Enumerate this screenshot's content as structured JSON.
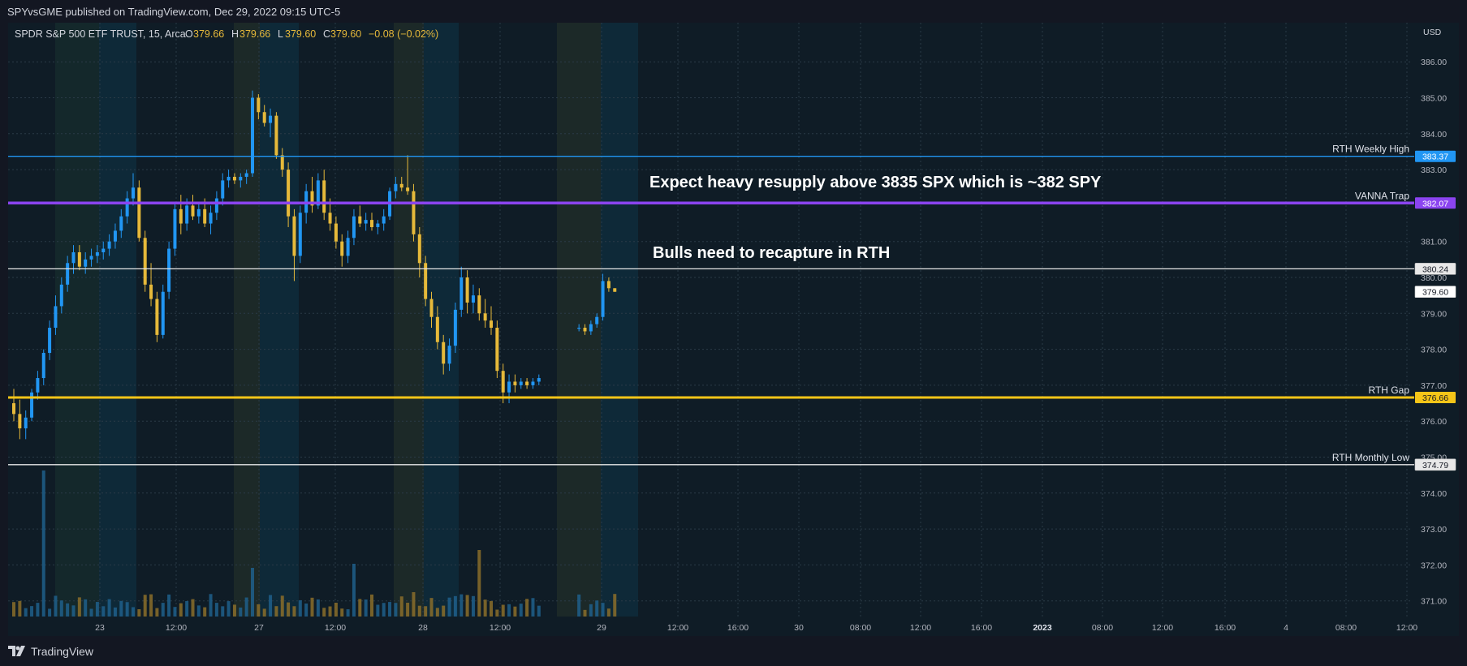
{
  "header": {
    "published_text": "SPYvsGME published on TradingView.com, Dec 29, 2022 09:15 UTC-5"
  },
  "symbol": {
    "title": "SPDR S&P 500 ETF TRUST, 15, Arca",
    "o_label": "O",
    "o_value": "379.66",
    "h_label": "H",
    "h_value": "379.66",
    "l_label": "L",
    "l_value": "379.60",
    "c_label": "C",
    "c_value": "379.60",
    "change": "−0.08 (−0.02%)"
  },
  "currency": "USD",
  "footer": {
    "brand": "TradingView"
  },
  "colors": {
    "up": "#2196f3",
    "down": "#e6b93a",
    "blue_line": "#2196f3",
    "purple_line": "#8b44f0",
    "yellow_line": "#f5c518",
    "white_line": "#e8e8e8"
  },
  "chart_data": {
    "type": "candlestick",
    "ylim": [
      370.5,
      386.6
    ],
    "y_ticks": [
      "386.00",
      "385.00",
      "384.00",
      "383.00",
      "381.00",
      "380.00",
      "379.00",
      "378.00",
      "377.00",
      "376.00",
      "375.00",
      "374.00",
      "373.00",
      "372.00",
      "371.00"
    ],
    "x_ticks": [
      "23",
      "12:00",
      "27",
      "12:00",
      "28",
      "12:00",
      "29",
      "12:00",
      "16:00",
      "30",
      "08:00",
      "12:00",
      "16:00",
      "2023",
      "08:00",
      "12:00",
      "16:00",
      "4",
      "08:00",
      "12:00"
    ],
    "levels": [
      {
        "name": "RTH Weekly High",
        "value": 383.37,
        "label": "383.37",
        "color": "#2196f3"
      },
      {
        "name": "VANNA Trap",
        "value": 382.07,
        "label": "382.07",
        "color": "#8b44f0"
      },
      {
        "name": "",
        "value": 380.24,
        "label": "380.24",
        "color": "#e8e8e8"
      },
      {
        "name": "RTH Gap",
        "value": 376.66,
        "label": "376.66",
        "color": "#f5c518"
      },
      {
        "name": "RTH Monthly Low",
        "value": 374.79,
        "label": "374.79",
        "color": "#e8e8e8"
      }
    ],
    "last_price": {
      "value": 379.6,
      "label": "379.60"
    },
    "annotations": [
      "Expect heavy resupply above 3835 SPX which is ~382 SPY",
      "Bulls need to recapture in RTH"
    ],
    "candles": [
      [
        376.5,
        376.9,
        376.0,
        376.2
      ],
      [
        376.2,
        376.6,
        375.5,
        375.8
      ],
      [
        375.8,
        376.3,
        375.5,
        376.1
      ],
      [
        376.1,
        376.9,
        376.0,
        376.8
      ],
      [
        376.8,
        377.4,
        376.6,
        377.2
      ],
      [
        377.2,
        378.0,
        377.0,
        377.9
      ],
      [
        377.9,
        378.8,
        377.7,
        378.6
      ],
      [
        378.6,
        379.5,
        378.4,
        379.2
      ],
      [
        379.2,
        380.0,
        379.0,
        379.8
      ],
      [
        379.8,
        380.6,
        379.6,
        380.4
      ],
      [
        380.4,
        380.9,
        380.1,
        380.7
      ],
      [
        380.7,
        380.9,
        380.2,
        380.3
      ],
      [
        380.3,
        380.7,
        380.1,
        380.5
      ],
      [
        380.5,
        380.8,
        380.3,
        380.6
      ],
      [
        380.6,
        380.9,
        380.4,
        380.7
      ],
      [
        380.7,
        381.0,
        380.5,
        380.8
      ],
      [
        380.8,
        381.2,
        380.6,
        381.0
      ],
      [
        381.0,
        381.5,
        380.8,
        381.3
      ],
      [
        381.3,
        381.9,
        381.1,
        381.7
      ],
      [
        381.7,
        382.4,
        381.5,
        382.2
      ],
      [
        382.2,
        382.9,
        382.0,
        382.5
      ],
      [
        382.5,
        382.7,
        381.0,
        381.1
      ],
      [
        381.1,
        381.3,
        379.6,
        379.8
      ],
      [
        379.8,
        380.4,
        379.2,
        379.4
      ],
      [
        379.4,
        379.6,
        378.2,
        378.4
      ],
      [
        378.4,
        379.8,
        378.3,
        379.6
      ],
      [
        379.6,
        381.0,
        379.4,
        380.8
      ],
      [
        380.8,
        382.1,
        380.6,
        381.9
      ],
      [
        381.9,
        382.3,
        381.2,
        381.5
      ],
      [
        381.5,
        382.2,
        381.3,
        382.0
      ],
      [
        382.0,
        382.3,
        381.6,
        381.7
      ],
      [
        381.7,
        382.1,
        381.5,
        381.9
      ],
      [
        381.9,
        382.2,
        381.4,
        381.5
      ],
      [
        381.5,
        382.0,
        381.2,
        381.8
      ],
      [
        381.8,
        382.4,
        381.6,
        382.2
      ],
      [
        382.2,
        382.9,
        382.0,
        382.7
      ],
      [
        382.7,
        383.0,
        382.5,
        382.8
      ],
      [
        382.8,
        382.9,
        382.6,
        382.7
      ],
      [
        382.7,
        382.9,
        382.5,
        382.8
      ],
      [
        382.8,
        383.0,
        382.6,
        382.9
      ],
      [
        382.9,
        385.2,
        382.8,
        385.0
      ],
      [
        385.0,
        385.1,
        384.4,
        384.6
      ],
      [
        384.6,
        384.8,
        384.2,
        384.3
      ],
      [
        384.3,
        384.7,
        383.9,
        384.5
      ],
      [
        384.5,
        384.6,
        383.3,
        383.4
      ],
      [
        383.4,
        383.6,
        382.8,
        383.0
      ],
      [
        383.0,
        383.2,
        381.4,
        381.7
      ],
      [
        381.7,
        381.9,
        379.9,
        380.6
      ],
      [
        380.6,
        382.0,
        380.4,
        381.8
      ],
      [
        381.8,
        382.6,
        381.5,
        382.4
      ],
      [
        382.4,
        382.8,
        381.8,
        382.0
      ],
      [
        382.0,
        382.9,
        381.9,
        382.7
      ],
      [
        382.7,
        383.0,
        381.6,
        381.8
      ],
      [
        381.8,
        382.2,
        381.3,
        381.5
      ],
      [
        381.5,
        381.7,
        380.8,
        381.0
      ],
      [
        381.0,
        381.2,
        380.3,
        380.6
      ],
      [
        380.6,
        381.3,
        380.4,
        381.1
      ],
      [
        381.1,
        381.9,
        380.9,
        381.7
      ],
      [
        381.7,
        382.0,
        381.4,
        381.5
      ],
      [
        381.5,
        381.8,
        381.3,
        381.6
      ],
      [
        381.6,
        381.8,
        381.3,
        381.4
      ],
      [
        381.4,
        381.6,
        381.2,
        381.5
      ],
      [
        381.5,
        381.9,
        381.3,
        381.7
      ],
      [
        381.7,
        382.5,
        381.6,
        382.4
      ],
      [
        382.4,
        382.8,
        382.2,
        382.6
      ],
      [
        382.6,
        382.8,
        382.4,
        382.5
      ],
      [
        382.5,
        383.4,
        382.3,
        382.4
      ],
      [
        382.4,
        382.6,
        381.0,
        381.2
      ],
      [
        381.2,
        381.4,
        380.0,
        380.4
      ],
      [
        380.4,
        380.6,
        379.2,
        379.4
      ],
      [
        379.4,
        379.6,
        378.6,
        378.9
      ],
      [
        378.9,
        379.2,
        378.0,
        378.2
      ],
      [
        378.2,
        378.4,
        377.3,
        377.6
      ],
      [
        377.6,
        378.3,
        377.4,
        378.1
      ],
      [
        378.1,
        379.3,
        377.9,
        379.1
      ],
      [
        379.1,
        380.3,
        378.9,
        380.0
      ],
      [
        380.0,
        380.2,
        379.0,
        379.3
      ],
      [
        379.3,
        379.8,
        379.0,
        379.5
      ],
      [
        379.5,
        379.7,
        378.8,
        379.0
      ],
      [
        379.0,
        379.4,
        378.6,
        378.8
      ],
      [
        378.8,
        379.2,
        378.4,
        378.6
      ],
      [
        378.6,
        378.8,
        377.2,
        377.4
      ],
      [
        377.4,
        377.6,
        376.5,
        376.8
      ],
      [
        376.8,
        377.3,
        376.5,
        377.1
      ],
      [
        377.1,
        377.3,
        376.8,
        377.0
      ],
      [
        377.0,
        377.2,
        376.9,
        377.1
      ],
      [
        377.1,
        377.2,
        376.9,
        377.0
      ],
      [
        377.0,
        377.2,
        376.9,
        377.1
      ],
      [
        377.1,
        377.3,
        377.0,
        377.2
      ],
      [
        378.6,
        378.7,
        378.5,
        378.6
      ],
      [
        378.6,
        378.7,
        378.4,
        378.5
      ],
      [
        378.5,
        378.8,
        378.4,
        378.7
      ],
      [
        378.7,
        379.0,
        378.6,
        378.9
      ],
      [
        378.9,
        380.1,
        378.8,
        379.9
      ],
      [
        379.9,
        380.0,
        379.6,
        379.7
      ],
      [
        379.7,
        379.7,
        379.6,
        379.6
      ]
    ]
  }
}
